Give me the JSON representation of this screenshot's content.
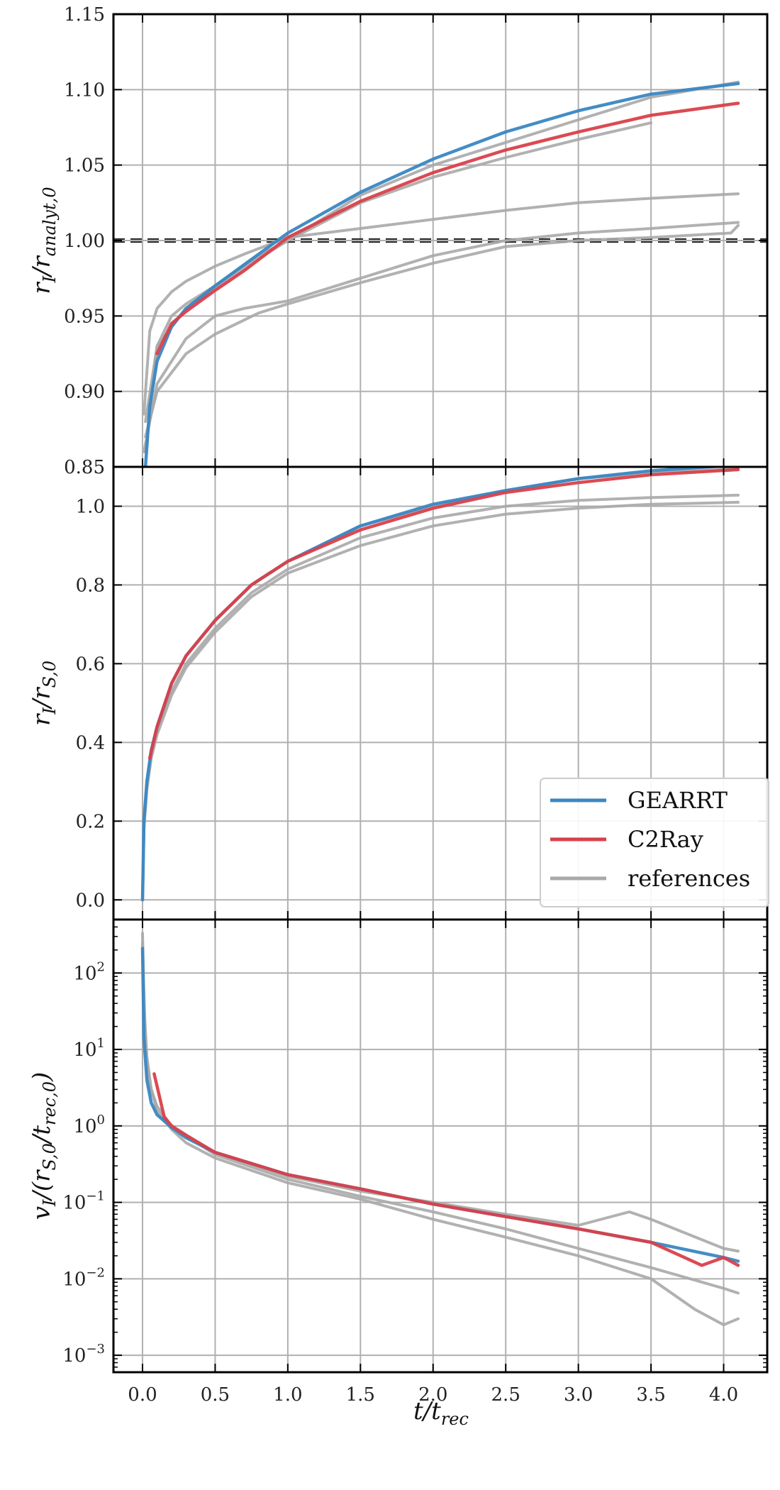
{
  "colors": {
    "gearrt": "#3a87c2",
    "c2ray": "#d9404a",
    "references": "#a8a8a8",
    "grid": "#b0b0b0",
    "axes": "#000000"
  },
  "xaxis": {
    "label": "t/t_rec",
    "ticks": [
      "0.0",
      "0.5",
      "1.0",
      "1.5",
      "2.0",
      "2.5",
      "3.0",
      "3.5",
      "4.0"
    ],
    "xlim": [
      -0.2,
      4.3
    ]
  },
  "legend": {
    "placement": "lower-right of middle panel",
    "entries": [
      {
        "label": "GEARRT",
        "color": "#3a87c2"
      },
      {
        "label": "C2Ray",
        "color": "#d9404a"
      },
      {
        "label": "references",
        "color": "#a8a8a8"
      }
    ]
  },
  "chart_data": [
    {
      "type": "line",
      "panel": "top",
      "ylabel": "r_I / r_analyt,0",
      "ylim": [
        0.85,
        1.15
      ],
      "yticks": [
        "0.85",
        "0.90",
        "0.95",
        "1.00",
        "1.05",
        "1.10",
        "1.15"
      ],
      "hlines": [
        0.999,
        1.001
      ],
      "grid": true,
      "series": [
        {
          "name": "references",
          "x": [
            0.01,
            0.05,
            0.1,
            0.2,
            0.3,
            0.5,
            0.7,
            1.0,
            1.5,
            2.0,
            2.5,
            3.0,
            3.5,
            4.1
          ],
          "y": [
            0.885,
            0.94,
            0.955,
            0.966,
            0.973,
            0.983,
            0.991,
            1.002,
            1.008,
            1.014,
            1.02,
            1.025,
            1.028,
            1.031
          ]
        },
        {
          "name": "references",
          "x": [
            0.01,
            0.1,
            0.3,
            0.5,
            0.7,
            1.0,
            1.5,
            2.0,
            2.5,
            3.0,
            3.5,
            4.1
          ],
          "y": [
            0.86,
            0.905,
            0.935,
            0.95,
            0.955,
            0.96,
            0.975,
            0.99,
            1.0,
            1.005,
            1.008,
            1.012
          ]
        },
        {
          "name": "references",
          "x": [
            0.02,
            0.1,
            0.3,
            0.5,
            0.8,
            1.0,
            1.5,
            2.0,
            2.5,
            3.0,
            3.5,
            4.05,
            4.1
          ],
          "y": [
            0.87,
            0.9,
            0.925,
            0.938,
            0.952,
            0.958,
            0.972,
            0.985,
            0.996,
            1.0,
            1.002,
            1.005,
            1.01
          ]
        },
        {
          "name": "references",
          "x": [
            0.02,
            0.1,
            0.2,
            0.3,
            0.5,
            0.8,
            1.0,
            1.5,
            2.0,
            2.5,
            3.0,
            3.5,
            4.1
          ],
          "y": [
            0.86,
            0.93,
            0.95,
            0.958,
            0.97,
            0.99,
            1.0,
            1.03,
            1.05,
            1.065,
            1.08,
            1.095,
            1.105
          ]
        },
        {
          "name": "references",
          "x": [
            0.02,
            0.1,
            0.3,
            0.5,
            0.8,
            1.0,
            1.5,
            2.0,
            2.5,
            3.0,
            3.5
          ],
          "y": [
            0.88,
            0.93,
            0.955,
            0.968,
            0.988,
            1.0,
            1.025,
            1.042,
            1.055,
            1.067,
            1.078
          ]
        },
        {
          "name": "GEARRT",
          "x": [
            0.02,
            0.05,
            0.1,
            0.2,
            0.3,
            0.5,
            0.7,
            1.0,
            1.5,
            2.0,
            2.5,
            3.0,
            3.5,
            4.1
          ],
          "y": [
            0.85,
            0.89,
            0.92,
            0.943,
            0.955,
            0.97,
            0.984,
            1.005,
            1.032,
            1.054,
            1.072,
            1.086,
            1.097,
            1.104
          ]
        },
        {
          "name": "C2Ray",
          "x": [
            0.1,
            0.2,
            0.3,
            0.5,
            0.7,
            1.0,
            1.5,
            2.0,
            2.5,
            3.0,
            3.5,
            4.1
          ],
          "y": [
            0.925,
            0.945,
            0.953,
            0.967,
            0.98,
            1.002,
            1.026,
            1.045,
            1.06,
            1.072,
            1.083,
            1.091
          ]
        }
      ]
    },
    {
      "type": "line",
      "panel": "middle",
      "ylabel": "r_I / r_S,0",
      "ylim": [
        -0.05,
        1.1
      ],
      "yticks": [
        "0.0",
        "0.2",
        "0.4",
        "0.6",
        "0.8",
        "1.0"
      ],
      "grid": true,
      "series": [
        {
          "name": "references",
          "x": [
            0,
            0.01,
            0.03,
            0.06,
            0.1,
            0.2,
            0.3,
            0.5,
            0.75,
            1.0,
            1.5,
            2.0,
            2.5,
            3.0,
            3.5,
            4.1
          ],
          "y": [
            0,
            0.18,
            0.28,
            0.36,
            0.42,
            0.52,
            0.59,
            0.68,
            0.77,
            0.83,
            0.9,
            0.95,
            0.98,
            0.995,
            1.005,
            1.01
          ]
        },
        {
          "name": "references",
          "x": [
            0,
            0.01,
            0.03,
            0.06,
            0.1,
            0.2,
            0.3,
            0.5,
            0.75,
            1.0,
            1.5,
            2.0,
            2.5,
            3.0,
            3.5,
            4.1
          ],
          "y": [
            0,
            0.19,
            0.29,
            0.37,
            0.43,
            0.53,
            0.6,
            0.69,
            0.78,
            0.84,
            0.92,
            0.97,
            1.0,
            1.015,
            1.022,
            1.028
          ]
        },
        {
          "name": "references",
          "x": [
            0,
            0.01,
            0.03,
            0.06,
            0.1,
            0.2,
            0.3,
            0.5,
            0.75,
            1.0,
            1.5,
            2.0,
            2.5,
            3.0,
            3.5,
            4.1
          ],
          "y": [
            0,
            0.2,
            0.3,
            0.38,
            0.44,
            0.55,
            0.62,
            0.71,
            0.8,
            0.86,
            0.95,
            1.0,
            1.04,
            1.07,
            1.085,
            1.095
          ]
        },
        {
          "name": "GEARRT",
          "x": [
            0,
            0.01,
            0.03,
            0.06,
            0.1,
            0.2,
            0.3,
            0.5,
            0.75,
            1.0,
            1.5,
            2.0,
            2.5,
            3.0,
            3.5,
            4.1
          ],
          "y": [
            0,
            0.2,
            0.3,
            0.38,
            0.44,
            0.55,
            0.62,
            0.71,
            0.8,
            0.86,
            0.95,
            1.005,
            1.04,
            1.07,
            1.09,
            1.105
          ]
        },
        {
          "name": "C2Ray",
          "x": [
            0.05,
            0.1,
            0.2,
            0.3,
            0.5,
            0.75,
            1.0,
            1.5,
            2.0,
            2.5,
            3.0,
            3.5,
            4.1
          ],
          "y": [
            0.36,
            0.44,
            0.55,
            0.62,
            0.71,
            0.8,
            0.86,
            0.94,
            0.995,
            1.035,
            1.06,
            1.08,
            1.093
          ]
        }
      ]
    },
    {
      "type": "line",
      "panel": "bottom",
      "ylabel": "v_I / (r_S,0 / t_rec,0)",
      "yscale": "log",
      "ylim": [
        0.0006,
        500
      ],
      "yticks": [
        "10^-3",
        "10^-2",
        "10^-1",
        "10^0",
        "10^1",
        "10^2"
      ],
      "grid": true,
      "series": [
        {
          "name": "references",
          "x": [
            0.0,
            0.01,
            0.03,
            0.06,
            0.1,
            0.2,
            0.3,
            0.5,
            1.0,
            1.5,
            2.0,
            2.5,
            3.0,
            3.5,
            4.0,
            4.1
          ],
          "y": [
            330,
            40,
            8,
            3,
            1.8,
            1.0,
            0.75,
            0.42,
            0.2,
            0.12,
            0.075,
            0.045,
            0.025,
            0.014,
            0.0075,
            0.0065
          ]
        },
        {
          "name": "references",
          "x": [
            0.0,
            0.02,
            0.05,
            0.1,
            0.2,
            0.3,
            0.5,
            1.0,
            1.5,
            2.0,
            2.5,
            3.0,
            3.5,
            3.8,
            4.0,
            4.1
          ],
          "y": [
            250,
            12,
            3.5,
            1.6,
            0.9,
            0.6,
            0.38,
            0.18,
            0.11,
            0.06,
            0.035,
            0.02,
            0.01,
            0.004,
            0.0025,
            0.003
          ]
        },
        {
          "name": "references",
          "x": [
            0.2,
            0.5,
            1.0,
            1.5,
            2.0,
            2.5,
            3.0,
            3.35,
            3.5,
            4.0,
            4.1
          ],
          "y": [
            1.0,
            0.45,
            0.22,
            0.14,
            0.1,
            0.07,
            0.05,
            0.075,
            0.06,
            0.025,
            0.023
          ]
        },
        {
          "name": "GEARRT",
          "x": [
            0.0,
            0.01,
            0.03,
            0.06,
            0.1,
            0.2,
            0.3,
            0.5,
            1.0,
            1.5,
            2.0,
            2.5,
            3.0,
            3.5,
            4.0,
            4.1
          ],
          "y": [
            210,
            14,
            4.0,
            2.0,
            1.4,
            0.95,
            0.7,
            0.45,
            0.23,
            0.15,
            0.095,
            0.065,
            0.045,
            0.03,
            0.019,
            0.017
          ]
        },
        {
          "name": "C2Ray",
          "x": [
            0.08,
            0.15,
            0.2,
            0.3,
            0.5,
            1.0,
            1.5,
            2.0,
            2.5,
            3.0,
            3.5,
            3.85,
            4.0,
            4.1
          ],
          "y": [
            4.8,
            1.3,
            1.0,
            0.75,
            0.45,
            0.23,
            0.15,
            0.095,
            0.065,
            0.045,
            0.03,
            0.015,
            0.019,
            0.015
          ]
        }
      ]
    }
  ]
}
